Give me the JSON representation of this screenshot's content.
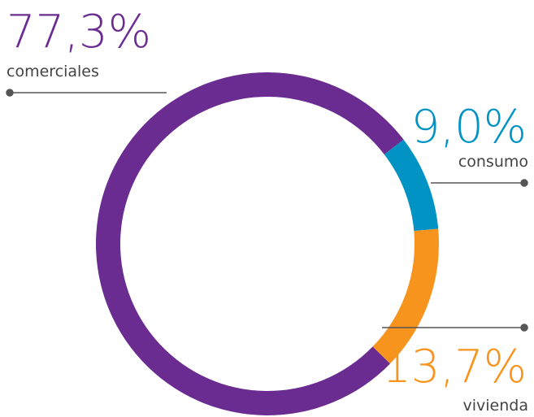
{
  "chart_data": {
    "type": "donut",
    "categories": [
      "comerciales",
      "consumo",
      "vivienda"
    ],
    "values": [
      77.3,
      9.0,
      13.7
    ],
    "value_labels": [
      "77,3%",
      "9,0%",
      "13,7%"
    ],
    "colors": [
      "#6a2c91",
      "#0093c4",
      "#f7941d"
    ]
  }
}
